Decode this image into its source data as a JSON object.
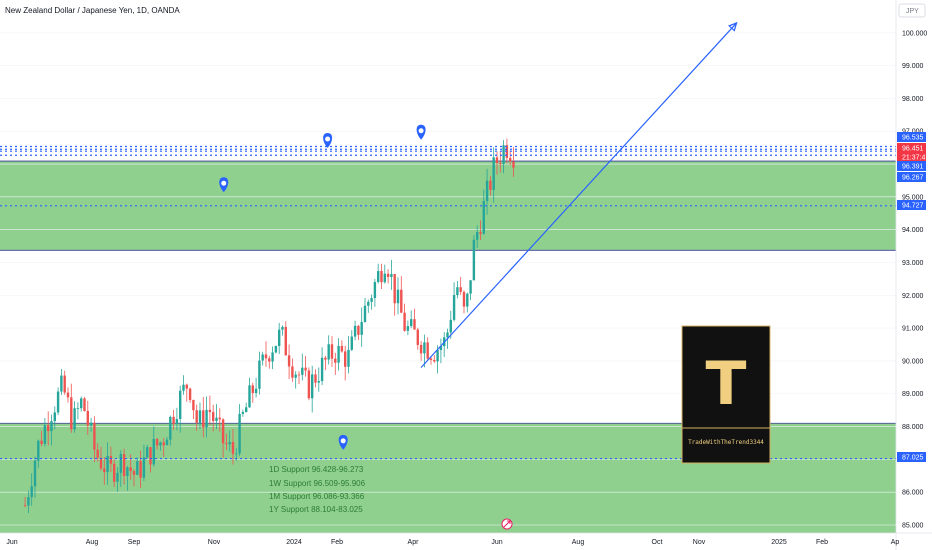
{
  "header": {
    "title": "New Zealand Dollar / Japanese Yen, 1D, OANDA",
    "currency_label": "JPY"
  },
  "colors": {
    "zone": "#8fd08f",
    "zone_border": "#3a3a9a",
    "up": "#26a69a",
    "down": "#ef5350",
    "dotted": "#2962ff",
    "trend": "#2962ff",
    "badge_blue": "#2962ff",
    "badge_red": "#f23645",
    "note_text": "#2e7d32"
  },
  "notes": [
    "1D Support 96.428-96.273",
    "1W Support 96.509-95.906",
    "1M Support 96.086-93.366",
    "1Y Support 88.104-83.025"
  ],
  "logo": {
    "letter": "T",
    "text": "TradeWithTheTrend3344"
  },
  "icons": [
    "location-pin-icon",
    "crosshair-icon"
  ],
  "chart_data": {
    "type": "candlestick",
    "title": "New Zealand Dollar / Japanese Yen, 1D, OANDA",
    "y_ticks": [
      "100.000",
      "99.000",
      "98.000",
      "97.000",
      "96.000",
      "95.000",
      "94.000",
      "93.000",
      "92.000",
      "91.000",
      "90.000",
      "89.000",
      "88.000",
      "87.000",
      "86.000",
      "85.000"
    ],
    "ylim": [
      84.8,
      100.9
    ],
    "x_labels": [
      "Jun",
      "Aug",
      "Sep",
      "Nov",
      "2024",
      "Feb",
      "Apr",
      "Jun",
      "Aug",
      "Oct",
      "Nov",
      "2025",
      "Feb",
      "Ap"
    ],
    "zones": [
      {
        "low": 93.37,
        "high": 96.09
      },
      {
        "low": 83.0,
        "high": 88.1
      }
    ],
    "horizontal_lines": [
      {
        "value": 96.535,
        "style": "dotted"
      },
      {
        "value": 96.451,
        "style": "dotted"
      },
      {
        "value": 96.391,
        "style": "dotted"
      },
      {
        "value": 96.267,
        "style": "dotted"
      },
      {
        "value": 94.727,
        "style": "dotted"
      },
      {
        "value": 87.025,
        "style": "dotted"
      }
    ],
    "price_badges": [
      {
        "label": "96.535",
        "value": 96.535,
        "color": "#2962ff"
      },
      {
        "label": "96.451",
        "value": 96.451,
        "color": "#f23645"
      },
      {
        "label": "21:37:47",
        "value": 96.32,
        "color": "#f23645"
      },
      {
        "label": "96.391",
        "value": 96.391,
        "color": "#2962ff"
      },
      {
        "label": "96.267",
        "value": 96.267,
        "color": "#2962ff"
      },
      {
        "label": "94.727",
        "value": 94.727,
        "color": "#2962ff"
      },
      {
        "label": "87.025",
        "value": 87.025,
        "color": "#2962ff"
      }
    ],
    "trendline": {
      "start": [
        "2024-04-01",
        89.8
      ],
      "end": [
        "2024-11-30",
        100.3
      ]
    },
    "markers": [
      {
        "date": "2024-01-20",
        "value": 96.55
      },
      {
        "date": "2024-04-01",
        "value": 96.8
      },
      {
        "date": "2023-11-01",
        "value": 95.2
      },
      {
        "date": "2024-02-01",
        "value": 87.35
      }
    ],
    "price_path": [
      [
        "2023-06-01",
        85.6
      ],
      [
        "2023-06-10",
        87.3
      ],
      [
        "2023-06-20",
        88.4
      ],
      [
        "2023-06-30",
        89.2
      ],
      [
        "2023-07-08",
        88.1
      ],
      [
        "2023-07-15",
        88.8
      ],
      [
        "2023-07-25",
        87.2
      ],
      [
        "2023-08-05",
        86.6
      ],
      [
        "2023-08-15",
        87.0
      ],
      [
        "2023-08-25",
        86.5
      ],
      [
        "2023-09-05",
        87.2
      ],
      [
        "2023-09-15",
        87.6
      ],
      [
        "2023-09-25",
        88.6
      ],
      [
        "2023-10-05",
        89.4
      ],
      [
        "2023-10-12",
        88.0
      ],
      [
        "2023-10-20",
        88.6
      ],
      [
        "2023-11-01",
        87.5
      ],
      [
        "2023-11-08",
        87.2
      ],
      [
        "2023-11-15",
        88.2
      ],
      [
        "2023-11-25",
        89.3
      ],
      [
        "2023-12-05",
        90.3
      ],
      [
        "2023-12-15",
        90.8
      ],
      [
        "2023-12-25",
        89.8
      ],
      [
        "2024-01-05",
        89.2
      ],
      [
        "2024-01-15",
        89.8
      ],
      [
        "2024-01-25",
        90.3
      ],
      [
        "2024-02-05",
        90.1
      ],
      [
        "2024-02-15",
        91.3
      ],
      [
        "2024-02-25",
        92.3
      ],
      [
        "2024-03-05",
        93.2
      ],
      [
        "2024-03-12",
        92.0
      ],
      [
        "2024-03-20",
        91.0
      ],
      [
        "2024-03-30",
        90.7
      ],
      [
        "2024-04-10",
        90.3
      ],
      [
        "2024-04-20",
        90.6
      ],
      [
        "2024-04-28",
        92.4
      ],
      [
        "2024-05-05",
        91.3
      ],
      [
        "2024-05-12",
        93.6
      ],
      [
        "2024-05-20",
        94.8
      ],
      [
        "2024-05-28",
        96.0
      ],
      [
        "2024-06-05",
        96.6
      ],
      [
        "2024-06-12",
        96.3
      ]
    ]
  }
}
